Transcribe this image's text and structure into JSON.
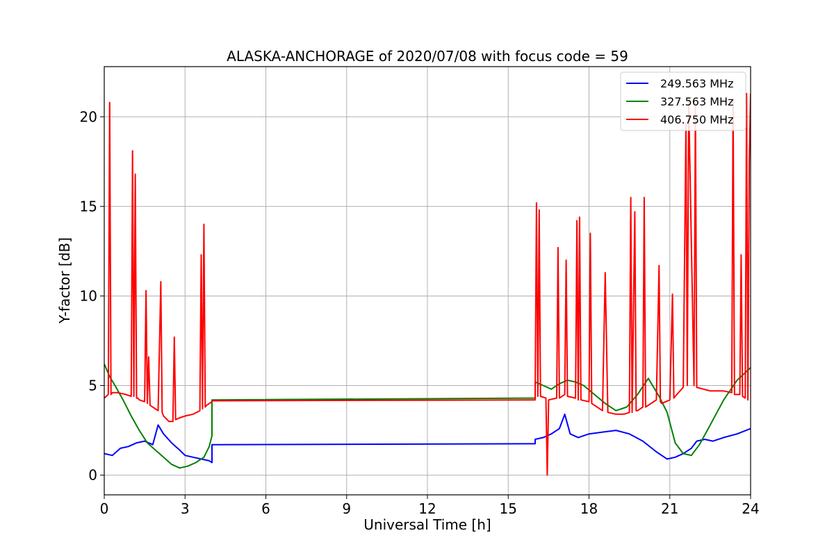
{
  "chart_data": {
    "type": "line",
    "title": "ALASKA-ANCHORAGE of 2020/07/08 with focus code = 59",
    "xlabel": "Universal Time [h]",
    "ylabel": "Y-factor [dB]",
    "xlim": [
      0,
      24
    ],
    "ylim": [
      -1.1,
      22.8
    ],
    "xticks": [
      0,
      3,
      6,
      9,
      12,
      15,
      18,
      21,
      24
    ],
    "yticks": [
      0,
      5,
      10,
      15,
      20
    ],
    "grid": true,
    "legend_position": "top-right",
    "series": [
      {
        "name": "249.563 MHz",
        "color": "#0000ff",
        "x": [
          0,
          0.3,
          0.6,
          0.9,
          1.2,
          1.5,
          1.8,
          2.0,
          2.2,
          2.5,
          2.8,
          3.0,
          3.3,
          3.6,
          3.9,
          4.0,
          4.0,
          16.0,
          16.0,
          16.3,
          16.6,
          16.9,
          17.1,
          17.3,
          17.6,
          18.0,
          18.5,
          19.0,
          19.5,
          20.0,
          20.5,
          20.9,
          21.2,
          21.5,
          21.8,
          22.0,
          22.3,
          22.6,
          23.0,
          23.5,
          24.0
        ],
        "y": [
          1.2,
          1.1,
          1.5,
          1.6,
          1.8,
          1.9,
          1.7,
          2.8,
          2.3,
          1.8,
          1.4,
          1.1,
          1.0,
          0.9,
          0.8,
          0.7,
          1.7,
          1.75,
          2.0,
          2.1,
          2.3,
          2.6,
          3.4,
          2.3,
          2.1,
          2.3,
          2.4,
          2.5,
          2.3,
          1.9,
          1.3,
          0.9,
          1.0,
          1.2,
          1.5,
          1.9,
          2.0,
          1.9,
          2.1,
          2.3,
          2.6
        ]
      },
      {
        "name": "327.563 MHz",
        "color": "#008000",
        "x": [
          0,
          0.2,
          0.4,
          0.7,
          1.0,
          1.3,
          1.6,
          1.9,
          2.2,
          2.5,
          2.8,
          3.1,
          3.4,
          3.7,
          3.9,
          4.0,
          4.0,
          16.0,
          16.0,
          16.3,
          16.6,
          16.9,
          17.2,
          17.5,
          17.8,
          18.2,
          18.6,
          19.0,
          19.4,
          19.8,
          20.2,
          20.6,
          20.9,
          21.2,
          21.5,
          21.8,
          22.1,
          22.5,
          23.0,
          23.5,
          24.0
        ],
        "y": [
          6.2,
          5.5,
          5.0,
          4.2,
          3.3,
          2.5,
          1.8,
          1.4,
          1.0,
          0.6,
          0.4,
          0.5,
          0.7,
          1.0,
          1.6,
          2.2,
          4.2,
          4.3,
          5.2,
          5.0,
          4.8,
          5.1,
          5.3,
          5.2,
          5.0,
          4.5,
          4.0,
          3.6,
          3.8,
          4.5,
          5.4,
          4.4,
          3.5,
          1.8,
          1.2,
          1.1,
          1.7,
          2.8,
          4.2,
          5.3,
          6.0
        ]
      },
      {
        "name": "406.750 MHz",
        "color": "#ff0000",
        "x": [
          0,
          0.15,
          0.2,
          0.25,
          0.3,
          0.5,
          0.8,
          1.0,
          1.05,
          1.1,
          1.15,
          1.2,
          1.25,
          1.3,
          1.5,
          1.55,
          1.6,
          1.65,
          1.7,
          2.0,
          2.1,
          2.15,
          2.2,
          2.4,
          2.55,
          2.6,
          2.65,
          2.8,
          3.0,
          3.3,
          3.55,
          3.6,
          3.65,
          3.7,
          3.75,
          3.8,
          4.0,
          4.0,
          16.0,
          16.0,
          16.05,
          16.1,
          16.15,
          16.2,
          16.4,
          16.45,
          16.5,
          16.8,
          16.85,
          16.9,
          17.1,
          17.15,
          17.2,
          17.5,
          17.55,
          17.6,
          17.65,
          17.7,
          18.0,
          18.05,
          18.1,
          18.5,
          18.6,
          18.7,
          19.0,
          19.3,
          19.5,
          19.55,
          19.6,
          19.7,
          19.75,
          19.8,
          20.0,
          20.05,
          20.1,
          20.5,
          20.6,
          20.65,
          20.7,
          21.0,
          21.1,
          21.15,
          21.2,
          21.5,
          21.6,
          21.65,
          21.7,
          21.9,
          21.95,
          22.0,
          22.5,
          23.0,
          23.3,
          23.35,
          23.4,
          23.6,
          23.65,
          23.7,
          23.8,
          23.85,
          23.9,
          23.95,
          24.0
        ],
        "y": [
          4.3,
          4.5,
          20.8,
          4.5,
          4.6,
          4.6,
          4.5,
          4.4,
          18.1,
          4.4,
          16.8,
          4.3,
          4.3,
          4.2,
          4.1,
          10.3,
          4.0,
          6.6,
          3.9,
          3.6,
          10.8,
          3.5,
          3.3,
          3.0,
          3.0,
          7.7,
          3.1,
          3.2,
          3.3,
          3.4,
          3.6,
          12.3,
          3.7,
          14.0,
          3.8,
          3.9,
          4.1,
          4.15,
          4.2,
          4.5,
          15.2,
          4.4,
          14.8,
          4.4,
          4.3,
          0.0,
          4.2,
          4.3,
          12.7,
          4.3,
          4.5,
          12.0,
          4.4,
          4.3,
          14.2,
          4.2,
          14.4,
          4.2,
          4.1,
          13.5,
          4.0,
          3.6,
          11.3,
          3.5,
          3.4,
          3.4,
          3.5,
          15.5,
          3.5,
          14.7,
          3.6,
          3.6,
          3.8,
          15.5,
          3.8,
          4.2,
          11.7,
          4.1,
          4.0,
          4.2,
          10.1,
          4.3,
          4.4,
          4.9,
          19.6,
          5.0,
          21.0,
          5.0,
          20.8,
          4.9,
          4.7,
          4.7,
          4.6,
          21.0,
          4.5,
          4.5,
          12.3,
          4.4,
          4.3,
          21.3,
          4.2,
          17.4,
          21.3
        ]
      }
    ]
  }
}
